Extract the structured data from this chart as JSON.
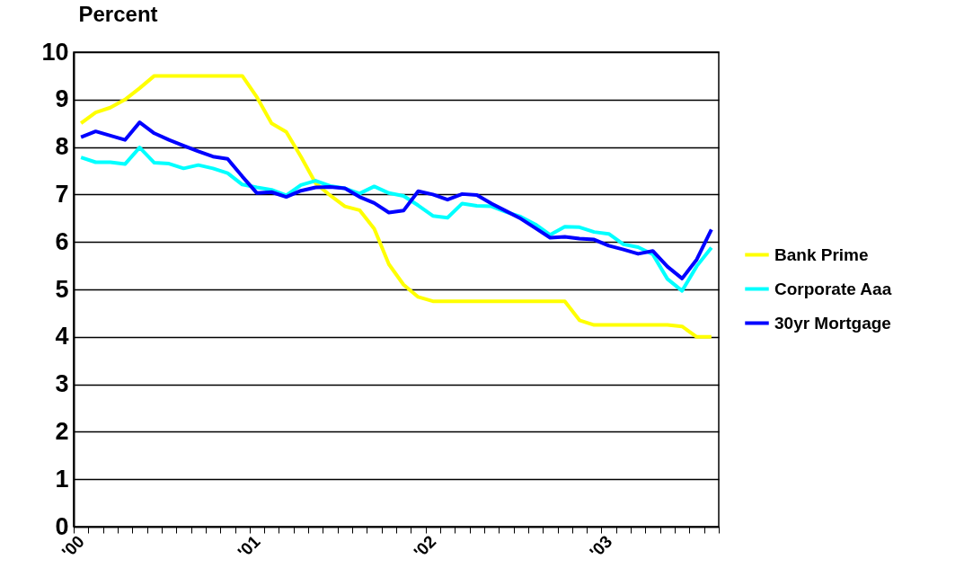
{
  "chart_data": {
    "type": "line",
    "ylabel": "Percent",
    "categories": [
      "'00",
      null,
      null,
      null,
      null,
      null,
      null,
      null,
      null,
      null,
      null,
      null,
      "'01",
      null,
      null,
      null,
      null,
      null,
      null,
      null,
      null,
      null,
      null,
      null,
      "'02",
      null,
      null,
      null,
      null,
      null,
      null,
      null,
      null,
      null,
      null,
      null,
      "'03",
      null,
      null,
      null,
      null,
      null,
      null,
      null
    ],
    "series": [
      {
        "name": "Bank Prime",
        "color": "#ffff00",
        "values": [
          8.5,
          8.73,
          8.83,
          9.0,
          9.24,
          9.5,
          9.5,
          9.5,
          9.5,
          9.5,
          9.5,
          9.5,
          9.05,
          8.5,
          8.32,
          7.8,
          7.24,
          6.98,
          6.75,
          6.67,
          6.28,
          5.53,
          5.1,
          4.84,
          4.75,
          4.75,
          4.75,
          4.75,
          4.75,
          4.75,
          4.75,
          4.75,
          4.75,
          4.75,
          4.35,
          4.25,
          4.25,
          4.25,
          4.25,
          4.25,
          4.25,
          4.22,
          4.0,
          4.0
        ]
      },
      {
        "name": "Corporate Aaa",
        "color": "#00ffff",
        "values": [
          7.78,
          7.68,
          7.68,
          7.64,
          7.99,
          7.67,
          7.65,
          7.55,
          7.62,
          7.55,
          7.45,
          7.21,
          7.15,
          7.1,
          6.98,
          7.2,
          7.29,
          7.18,
          7.13,
          7.02,
          7.17,
          7.03,
          6.97,
          6.77,
          6.55,
          6.51,
          6.81,
          6.76,
          6.75,
          6.63,
          6.53,
          6.37,
          6.15,
          6.32,
          6.31,
          6.21,
          6.17,
          5.95,
          5.89,
          5.74,
          5.22,
          4.97,
          5.49,
          5.88
        ]
      },
      {
        "name": "30yr Mortgage",
        "color": "#0000ff",
        "values": [
          8.21,
          8.33,
          8.24,
          8.15,
          8.52,
          8.29,
          8.15,
          8.03,
          7.91,
          7.8,
          7.75,
          7.38,
          7.03,
          7.05,
          6.95,
          7.08,
          7.15,
          7.16,
          7.13,
          6.95,
          6.82,
          6.62,
          6.66,
          7.07,
          7.0,
          6.89,
          7.01,
          6.99,
          6.81,
          6.65,
          6.49,
          6.29,
          6.09,
          6.11,
          6.07,
          6.05,
          5.92,
          5.84,
          5.75,
          5.81,
          5.48,
          5.23,
          5.63,
          6.26
        ]
      }
    ],
    "ylim": [
      0,
      10
    ],
    "yticks": [
      0,
      1,
      2,
      3,
      4,
      5,
      6,
      7,
      8,
      9,
      10
    ],
    "grid": "y",
    "legend": "right"
  }
}
